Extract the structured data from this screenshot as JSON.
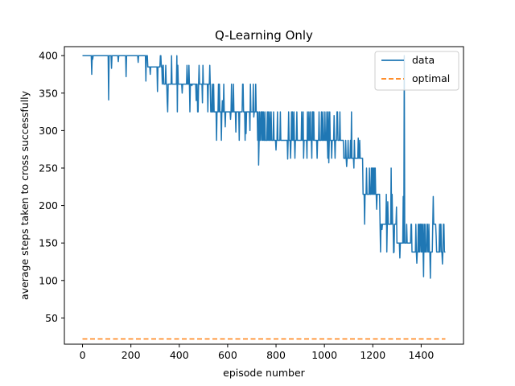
{
  "chart_data": {
    "type": "line",
    "title": "Q-Learning Only",
    "xlabel": "episode number",
    "ylabel": "average steps taken to cross successfully",
    "xlim": [
      -75,
      1575
    ],
    "ylim": [
      15,
      412
    ],
    "xticks": [
      0,
      200,
      400,
      600,
      800,
      1000,
      1200,
      1400
    ],
    "yticks": [
      50,
      100,
      150,
      200,
      250,
      300,
      350,
      400
    ],
    "legend_position": "top-right",
    "grid": false,
    "series": [
      {
        "name": "data",
        "style": "solid",
        "color": "#1f77b4",
        "segments": [
          {
            "x_start": 0,
            "x_end": 270,
            "base": 400
          },
          {
            "x_start": 270,
            "x_end": 330,
            "base": 385
          },
          {
            "x_start": 330,
            "x_end": 460,
            "base": 362
          },
          {
            "x_start": 460,
            "x_end": 530,
            "base": 362
          },
          {
            "x_start": 530,
            "x_end": 720,
            "base": 325
          },
          {
            "x_start": 720,
            "x_end": 1080,
            "base": 287
          },
          {
            "x_start": 1080,
            "x_end": 1160,
            "base": 263
          },
          {
            "x_start": 1160,
            "x_end": 1230,
            "base": 215
          },
          {
            "x_start": 1230,
            "x_end": 1300,
            "base": 175
          },
          {
            "x_start": 1300,
            "x_end": 1360,
            "base": 150
          },
          {
            "x_start": 1360,
            "x_end": 1500,
            "base": 138
          }
        ],
        "spikes": [
          {
            "x": 38,
            "y": 375
          },
          {
            "x": 42,
            "y": 395
          },
          {
            "x": 108,
            "y": 341
          },
          {
            "x": 120,
            "y": 383
          },
          {
            "x": 148,
            "y": 392
          },
          {
            "x": 180,
            "y": 372
          },
          {
            "x": 230,
            "y": 391
          },
          {
            "x": 262,
            "y": 366
          },
          {
            "x": 280,
            "y": 375
          },
          {
            "x": 295,
            "y": 357
          },
          {
            "x": 310,
            "y": 352
          },
          {
            "x": 322,
            "y": 400
          },
          {
            "x": 350,
            "y": 338
          },
          {
            "x": 368,
            "y": 400
          },
          {
            "x": 390,
            "y": 400
          },
          {
            "x": 412,
            "y": 350
          },
          {
            "x": 452,
            "y": 360
          },
          {
            "x": 470,
            "y": 340
          },
          {
            "x": 478,
            "y": 325
          },
          {
            "x": 496,
            "y": 337
          },
          {
            "x": 515,
            "y": 328
          },
          {
            "x": 545,
            "y": 362
          },
          {
            "x": 562,
            "y": 362
          },
          {
            "x": 578,
            "y": 340
          },
          {
            "x": 590,
            "y": 305
          },
          {
            "x": 612,
            "y": 315
          },
          {
            "x": 634,
            "y": 298
          },
          {
            "x": 650,
            "y": 325
          },
          {
            "x": 676,
            "y": 296
          },
          {
            "x": 692,
            "y": 300
          },
          {
            "x": 708,
            "y": 318
          },
          {
            "x": 728,
            "y": 254
          },
          {
            "x": 744,
            "y": 325
          },
          {
            "x": 780,
            "y": 325
          },
          {
            "x": 800,
            "y": 274
          },
          {
            "x": 815,
            "y": 325
          },
          {
            "x": 848,
            "y": 262
          },
          {
            "x": 874,
            "y": 325
          },
          {
            "x": 912,
            "y": 325
          },
          {
            "x": 942,
            "y": 325
          },
          {
            "x": 978,
            "y": 325
          },
          {
            "x": 1010,
            "y": 325
          },
          {
            "x": 1018,
            "y": 257
          },
          {
            "x": 1040,
            "y": 320
          },
          {
            "x": 1064,
            "y": 325
          },
          {
            "x": 1092,
            "y": 252
          },
          {
            "x": 1112,
            "y": 325
          },
          {
            "x": 1140,
            "y": 290
          },
          {
            "x": 1175,
            "y": 223
          },
          {
            "x": 1198,
            "y": 250
          },
          {
            "x": 1216,
            "y": 195
          },
          {
            "x": 1238,
            "y": 168
          },
          {
            "x": 1262,
            "y": 205
          },
          {
            "x": 1276,
            "y": 250
          },
          {
            "x": 1286,
            "y": 137
          },
          {
            "x": 1298,
            "y": 198
          },
          {
            "x": 1312,
            "y": 130
          },
          {
            "x": 1326,
            "y": 212
          },
          {
            "x": 1340,
            "y": 175
          },
          {
            "x": 1358,
            "y": 175
          },
          {
            "x": 1382,
            "y": 123
          },
          {
            "x": 1396,
            "y": 175
          },
          {
            "x": 1410,
            "y": 105
          },
          {
            "x": 1424,
            "y": 175
          },
          {
            "x": 1438,
            "y": 103
          },
          {
            "x": 1450,
            "y": 212
          },
          {
            "x": 1462,
            "y": 160
          },
          {
            "x": 1476,
            "y": 175
          },
          {
            "x": 1488,
            "y": 122
          },
          {
            "x": 1494,
            "y": 175
          }
        ]
      },
      {
        "name": "optimal",
        "style": "dashed",
        "color": "#ff7f0e",
        "x": [
          0,
          1500
        ],
        "y": [
          22,
          22
        ]
      }
    ]
  }
}
